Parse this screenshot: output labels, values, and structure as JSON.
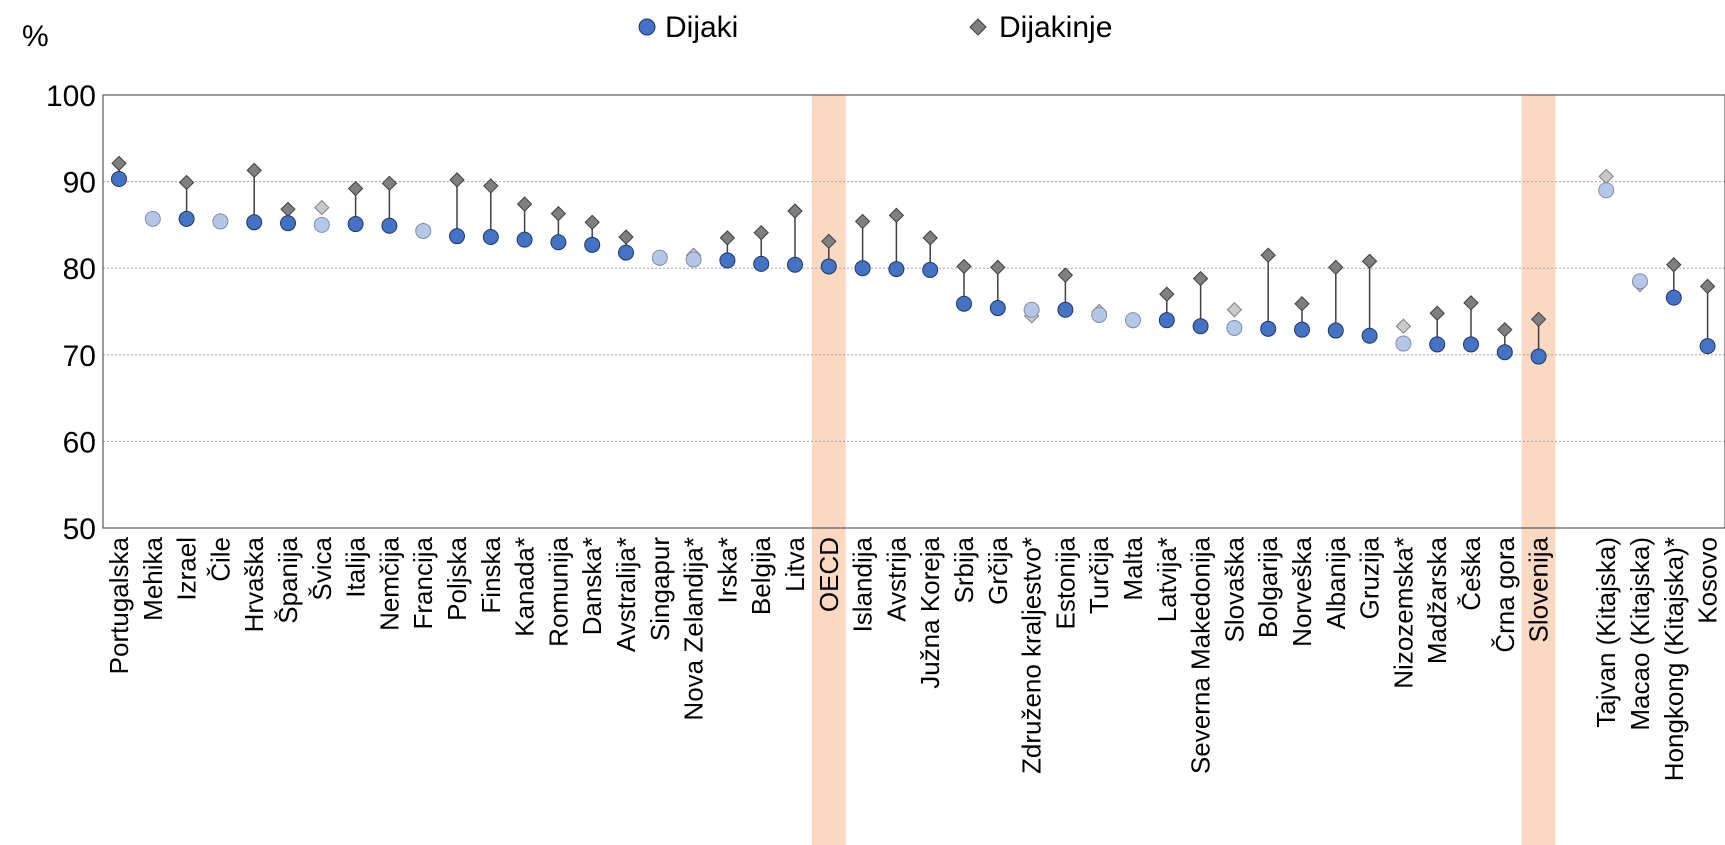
{
  "chart_data": {
    "type": "dot-range",
    "unit_label": "%",
    "ylim": [
      50,
      100
    ],
    "yticks": [
      50,
      60,
      70,
      80,
      90,
      100
    ],
    "grid": true,
    "legend_position": "top-center",
    "legend": [
      {
        "name": "Dijaki",
        "marker": "circle",
        "color": "#4472C4"
      },
      {
        "name": "Dijakinje",
        "marker": "diamond",
        "color": "#7F7F7F"
      }
    ],
    "colors": {
      "boys": "#4472C4",
      "girls": "#7F7F7F",
      "boys_light": "#B4C7E7",
      "girls_light": "#C9C9C9",
      "highlight": "#F8CBAD",
      "connector": "#404040",
      "grid": "#A6A6A6"
    },
    "highlight_categories": [
      "OECD",
      "Slovenija"
    ],
    "categories": [
      "Portugalska",
      "Mehika",
      "Izrael",
      "Čile",
      "Hrvaška",
      "Španija",
      "Švica",
      "Italija",
      "Nemčija",
      "Francija",
      "Poljska",
      "Finska",
      "Kanada*",
      "Romunija",
      "Danska*",
      "Avstralija*",
      "Singapur",
      "Nova Zelandija*",
      "Irska*",
      "Belgija",
      "Litva",
      "OECD",
      "Islandija",
      "Avstrija",
      "Južna Koreja",
      "Srbija",
      "Grčija",
      "Združeno kraljestvo*",
      "Estonija",
      "Turčija",
      "Malta",
      "Latvija*",
      "Severna Makedonija",
      "Slovaška",
      "Bolgarija",
      "Norveška",
      "Albanija",
      "Gruzija",
      "Nizozemska*",
      "Madžarska",
      "Češka",
      "Črna gora",
      "Slovenija",
      "",
      "Tajvan (Kitajska)",
      "Macao (Kitajska)",
      "Hongkong (Kitajska)*",
      "Kosovo"
    ],
    "series": [
      {
        "name": "Dijaki",
        "values": [
          90.3,
          85.7,
          85.7,
          85.4,
          85.3,
          85.2,
          85.0,
          85.1,
          84.9,
          84.3,
          83.7,
          83.6,
          83.3,
          83.0,
          82.7,
          81.8,
          81.2,
          81.0,
          80.9,
          80.5,
          80.4,
          80.2,
          80.0,
          79.9,
          79.8,
          75.9,
          75.4,
          75.2,
          75.2,
          74.6,
          74.0,
          74.0,
          73.3,
          73.1,
          73.0,
          72.9,
          72.8,
          72.2,
          71.3,
          71.2,
          71.2,
          70.3,
          69.8,
          null,
          89.0,
          78.5,
          76.6,
          71.0
        ]
      },
      {
        "name": "Dijakinje",
        "values": [
          92.1,
          85.7,
          89.9,
          85.5,
          91.3,
          86.8,
          87.0,
          89.2,
          89.8,
          84.4,
          90.2,
          89.5,
          87.4,
          86.3,
          85.3,
          83.6,
          81.1,
          81.5,
          83.5,
          84.1,
          86.6,
          83.1,
          85.4,
          86.1,
          83.5,
          80.2,
          80.1,
          74.5,
          79.2,
          75.0,
          73.9,
          77.0,
          78.8,
          75.2,
          81.5,
          75.9,
          80.1,
          80.8,
          73.3,
          74.8,
          76.0,
          72.9,
          74.1,
          null,
          90.6,
          78.1,
          80.4,
          77.9
        ]
      }
    ],
    "insignificant_categories": [
      "Mehika",
      "Čile",
      "Švica",
      "Francija",
      "Singapur",
      "Nova Zelandija*",
      "Združeno kraljestvo*",
      "Turčija",
      "Malta",
      "Slovaška",
      "Nizozemska*",
      "Tajvan (Kitajska)",
      "Macao (Kitajska)"
    ]
  }
}
